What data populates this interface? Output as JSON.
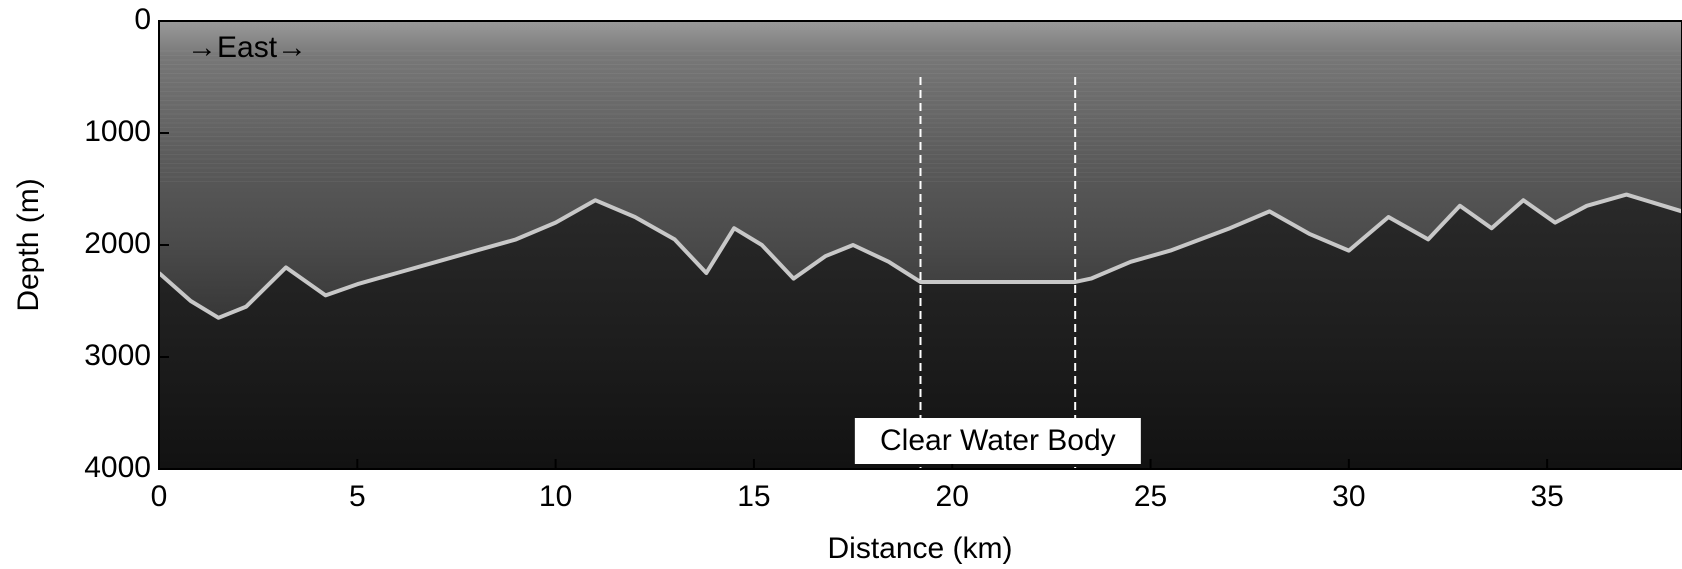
{
  "chart_data": {
    "type": "line",
    "xlabel": "Distance (km)",
    "ylabel": "Depth (m)",
    "xlim": [
      0,
      38.4
    ],
    "ylim": [
      4000,
      0
    ],
    "xticks": [
      0,
      5,
      10,
      15,
      20,
      25,
      30,
      35
    ],
    "yticks": [
      0,
      1000,
      2000,
      3000,
      4000
    ],
    "annotations": [
      "→East→",
      "Clear Water Body"
    ],
    "vlines": [
      19.2,
      23.1
    ],
    "series": [
      {
        "color": "#c8c8c8",
        "x": [
          0,
          0.8,
          1.5,
          2.2,
          3.2,
          4.2,
          5,
          6,
          7,
          8,
          9,
          10,
          11,
          12,
          13,
          13.8,
          14.5,
          15.2,
          16,
          16.8,
          17.5,
          18.4,
          19.2,
          23.1,
          23.5,
          24.5,
          25.5,
          27,
          28,
          29,
          30,
          31,
          32,
          32.8,
          33.6,
          34.4,
          35.2,
          36,
          37,
          38.4
        ],
        "values": [
          2250,
          2500,
          2650,
          2550,
          2200,
          2450,
          2350,
          2250,
          2150,
          2050,
          1950,
          1800,
          1600,
          1750,
          1950,
          2250,
          1850,
          2000,
          2300,
          2100,
          2000,
          2150,
          2330,
          2330,
          2300,
          2150,
          2050,
          1850,
          1700,
          1900,
          2050,
          1750,
          1950,
          1650,
          1850,
          1600,
          1800,
          1650,
          1550,
          1700
        ]
      }
    ]
  }
}
